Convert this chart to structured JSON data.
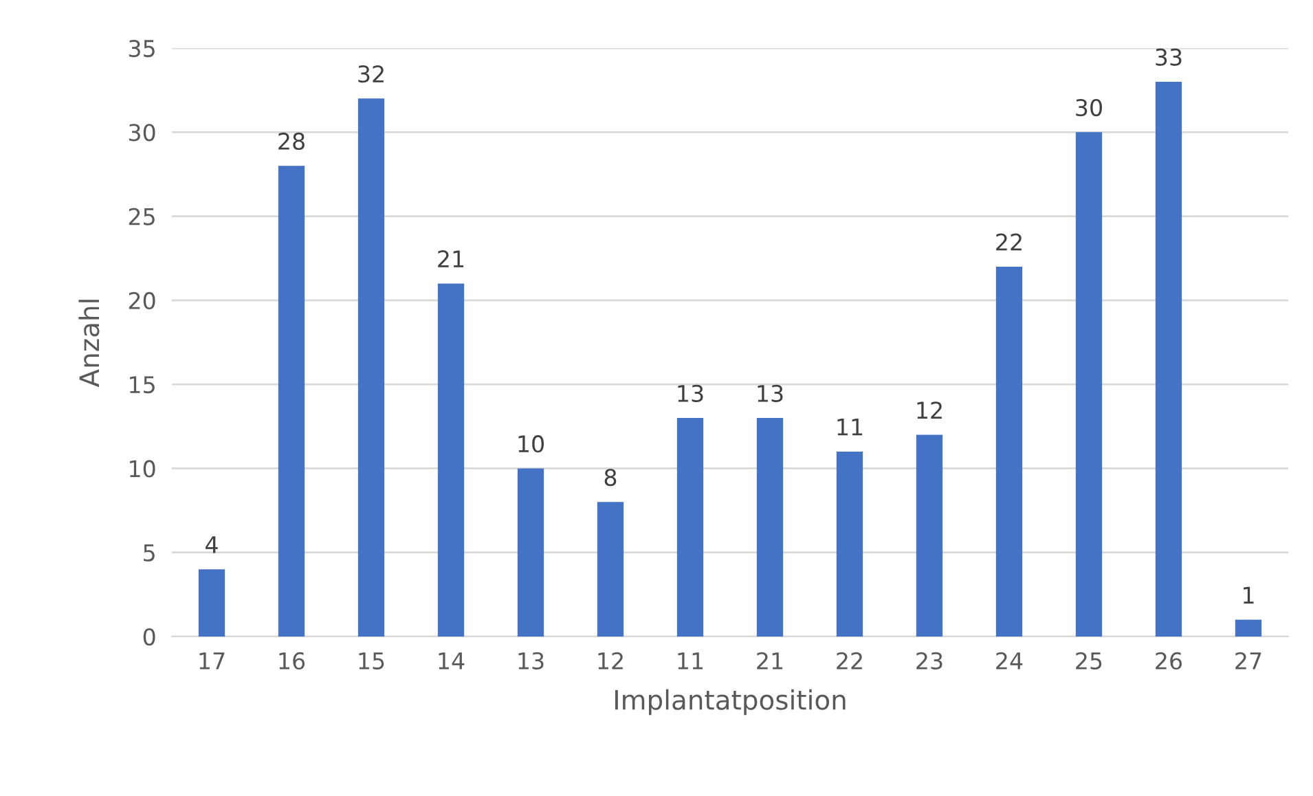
{
  "chart_data": {
    "type": "bar",
    "xlabel": "Implantatposition",
    "ylabel": "Anzahl",
    "categories": [
      "17",
      "16",
      "15",
      "14",
      "13",
      "12",
      "11",
      "21",
      "22",
      "23",
      "24",
      "25",
      "26",
      "27"
    ],
    "values": [
      4,
      28,
      32,
      21,
      10,
      8,
      13,
      13,
      11,
      12,
      22,
      30,
      33,
      1
    ],
    "color": "#4472c4",
    "ylim": [
      0,
      35
    ],
    "yticks": [
      0,
      5,
      10,
      15,
      20,
      25,
      30,
      35
    ],
    "grid": "y",
    "data_labels": true,
    "legend": false
  }
}
